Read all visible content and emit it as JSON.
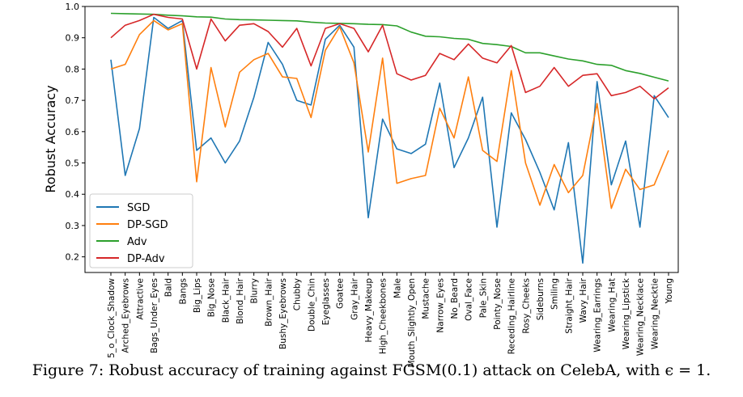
{
  "chart_data": {
    "type": "line",
    "ylabel": "Robust Accuracy",
    "xlabel": "",
    "ylim": [
      0.15,
      1.0
    ],
    "yticks": [
      0.2,
      0.3,
      0.4,
      0.5,
      0.6,
      0.7,
      0.8,
      0.9,
      1.0
    ],
    "legend_position": "lower-left",
    "grid": false,
    "categories": [
      "5_o_Clock_Shadow",
      "Arched_Eyebrows",
      "Attractive",
      "Bags_Under_Eyes",
      "Bald",
      "Bangs",
      "Big_Lips",
      "Big_Nose",
      "Black_Hair",
      "Blond_Hair",
      "Blurry",
      "Brown_Hair",
      "Bushy_Eyebrows",
      "Chubby",
      "Double_Chin",
      "Eyeglasses",
      "Goatee",
      "Gray_Hair",
      "Heavy_Makeup",
      "High_Cheekbones",
      "Male",
      "Mouth_Slightly_Open",
      "Mustache",
      "Narrow_Eyes",
      "No_Beard",
      "Oval_Face",
      "Pale_Skin",
      "Pointy_Nose",
      "Receding_Hairline",
      "Rosy_Cheeks",
      "Sideburns",
      "Smiling",
      "Straight_Hair",
      "Wavy_Hair",
      "Wearing_Earrings",
      "Wearing_Hat",
      "Wearing_Lipstick",
      "Wearing_Necklace",
      "Wearing_Necktie",
      "Young"
    ],
    "series": [
      {
        "name": "SGD",
        "color": "#1f77b4",
        "values": [
          0.83,
          0.46,
          0.61,
          0.965,
          0.93,
          0.955,
          0.54,
          0.58,
          0.5,
          0.57,
          0.71,
          0.885,
          0.815,
          0.7,
          0.685,
          0.895,
          0.94,
          0.87,
          0.325,
          0.64,
          0.545,
          0.53,
          0.56,
          0.755,
          0.485,
          0.58,
          0.71,
          0.295,
          0.66,
          0.575,
          0.47,
          0.35,
          0.565,
          0.18,
          0.76,
          0.43,
          0.57,
          0.295,
          0.715,
          0.645
        ]
      },
      {
        "name": "DP-SGD",
        "color": "#ff7f0e",
        "values": [
          0.8,
          0.815,
          0.91,
          0.955,
          0.925,
          0.945,
          0.44,
          0.805,
          0.615,
          0.79,
          0.83,
          0.85,
          0.775,
          0.77,
          0.645,
          0.86,
          0.935,
          0.82,
          0.535,
          0.835,
          0.435,
          0.45,
          0.46,
          0.675,
          0.58,
          0.775,
          0.54,
          0.505,
          0.795,
          0.5,
          0.365,
          0.495,
          0.405,
          0.46,
          0.69,
          0.355,
          0.48,
          0.415,
          0.43,
          0.54
        ]
      },
      {
        "name": "Adv",
        "color": "#2ca02c",
        "values": [
          0.978,
          0.977,
          0.976,
          0.975,
          0.972,
          0.97,
          0.967,
          0.966,
          0.96,
          0.958,
          0.957,
          0.956,
          0.955,
          0.954,
          0.95,
          0.947,
          0.946,
          0.945,
          0.943,
          0.942,
          0.938,
          0.918,
          0.905,
          0.903,
          0.898,
          0.895,
          0.882,
          0.878,
          0.872,
          0.852,
          0.852,
          0.842,
          0.832,
          0.826,
          0.815,
          0.812,
          0.795,
          0.786,
          0.774,
          0.762
        ]
      },
      {
        "name": "DP-Adv",
        "color": "#d62728",
        "values": [
          0.9,
          0.94,
          0.955,
          0.975,
          0.965,
          0.96,
          0.8,
          0.96,
          0.89,
          0.94,
          0.945,
          0.92,
          0.87,
          0.93,
          0.81,
          0.93,
          0.945,
          0.93,
          0.855,
          0.94,
          0.785,
          0.765,
          0.78,
          0.85,
          0.83,
          0.88,
          0.835,
          0.82,
          0.875,
          0.725,
          0.745,
          0.805,
          0.745,
          0.78,
          0.785,
          0.715,
          0.725,
          0.745,
          0.705,
          0.74
        ]
      }
    ]
  },
  "caption": "Figure 7: Robust accuracy of training against FGSM(0.1) attack on CelebA, with ϵ = 1."
}
